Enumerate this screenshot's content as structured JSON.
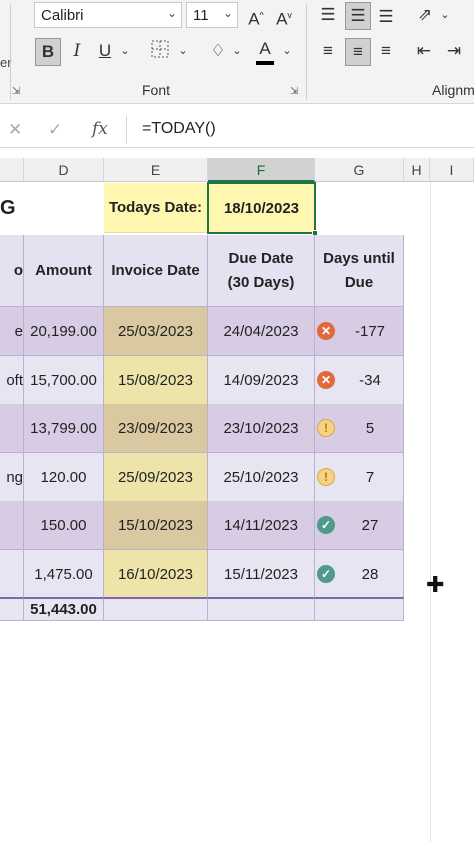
{
  "ribbon": {
    "cut_label": "er",
    "font_name": "Calibri",
    "font_size": "11",
    "grow_font": "A",
    "shrink_font": "A",
    "bold": "B",
    "italic": "I",
    "underline": "U",
    "font_color_letter": "A",
    "font_group_label": "Font",
    "align_group_label": "Alignm"
  },
  "formula_bar": {
    "fx_label": "fx",
    "formula": "=TODAY()"
  },
  "columns": [
    "D",
    "E",
    "F",
    "G",
    "H",
    "I"
  ],
  "selected_column": "F",
  "sheet": {
    "title_fragment": "G",
    "todays_date_label": "Todays Date:",
    "todays_date_value": "18/10/2023",
    "headers": {
      "c": "o",
      "amount": "Amount",
      "invoice_date": "Invoice Date",
      "due_date_line1": "Due Date",
      "due_date_line2": "(30 Days)",
      "days_until_line1": "Days until",
      "days_until_line2": "Due"
    },
    "rows": [
      {
        "c": "e",
        "amount": "20,199.00",
        "invoice_date": "25/03/2023",
        "due_date": "24/04/2023",
        "status": "overdue",
        "days": "-177"
      },
      {
        "c": "oft",
        "amount": "15,700.00",
        "invoice_date": "15/08/2023",
        "due_date": "14/09/2023",
        "status": "overdue",
        "days": "-34"
      },
      {
        "c": "",
        "amount": "13,799.00",
        "invoice_date": "23/09/2023",
        "due_date": "23/10/2023",
        "status": "warning",
        "days": "5"
      },
      {
        "c": "ng",
        "amount": "120.00",
        "invoice_date": "25/09/2023",
        "due_date": "25/10/2023",
        "status": "warning",
        "days": "7"
      },
      {
        "c": "",
        "amount": "150.00",
        "invoice_date": "15/10/2023",
        "due_date": "14/11/2023",
        "status": "ok",
        "days": "27"
      },
      {
        "c": "",
        "amount": "1,475.00",
        "invoice_date": "16/10/2023",
        "due_date": "15/11/2023",
        "status": "ok",
        "days": "28"
      }
    ],
    "total_amount": "51,443.00"
  },
  "status_icons": {
    "overdue": "✕",
    "warning": "!",
    "ok": "✓"
  },
  "colors": {
    "accent_green": "#217346",
    "row_purple": "#d8cce4",
    "row_lavender": "#e8e5f3",
    "todays_date_fill": "#fff6b0"
  }
}
